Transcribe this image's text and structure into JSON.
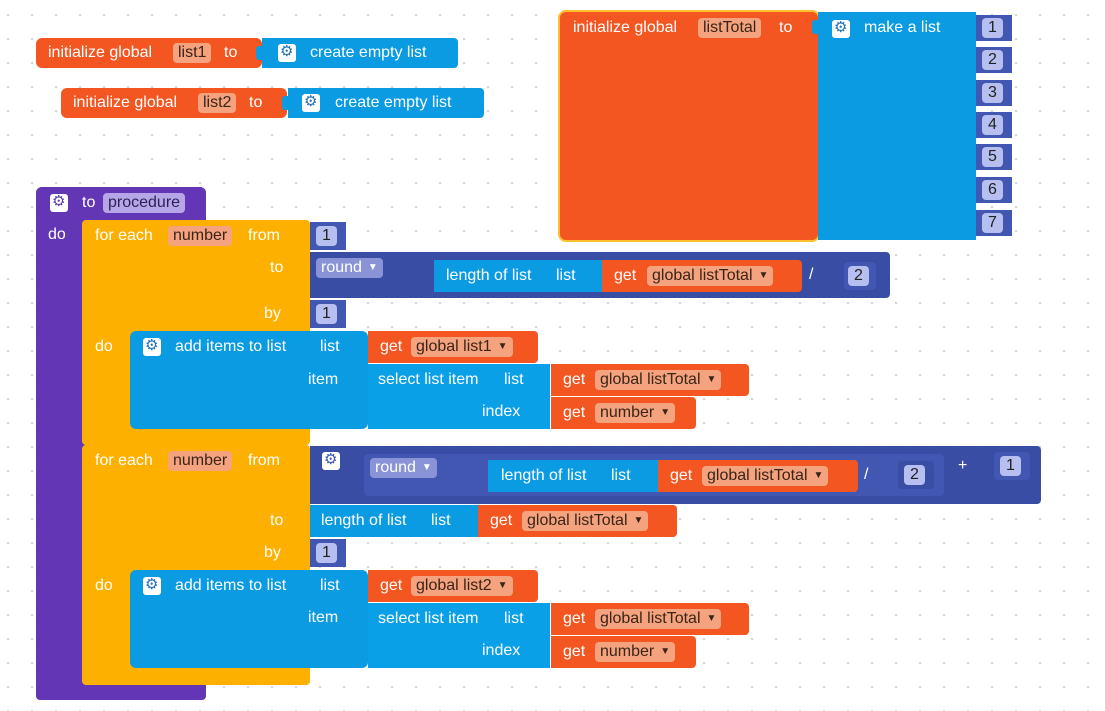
{
  "colors": {
    "global": "#f45622",
    "list": "#0b9be3",
    "math": "#3a4da4",
    "control": "#fdb000",
    "procedure": "#6236b4"
  },
  "init1": {
    "prefix": "initialize global",
    "name": "list1",
    "to": "to",
    "value": "create empty list"
  },
  "init2": {
    "prefix": "initialize global",
    "name": "list2",
    "to": "to",
    "value": "create empty list"
  },
  "init3": {
    "prefix": "initialize global",
    "name": "listTotal",
    "to": "to",
    "value": "make a list",
    "items": [
      "1",
      "2",
      "3",
      "4",
      "5",
      "6",
      "7"
    ]
  },
  "proc": {
    "to": "to",
    "name": "procedure",
    "do": "do",
    "loop1": {
      "for_each": "for each",
      "var": "number",
      "from": "from",
      "from_value": "1",
      "to": "to",
      "round": "round",
      "length_of_list": "length of list",
      "list": "list",
      "get": "get",
      "get_value": "global listTotal",
      "divide": "/",
      "divisor": "2",
      "by": "by",
      "by_value": "1",
      "do": "do",
      "add_items": "add items to list",
      "list_label": "list",
      "target_list": "global list1",
      "item": "item",
      "select_list_item": "select list item",
      "select_list_label": "list",
      "select_list_value": "global listTotal",
      "index": "index",
      "index_value": "number"
    },
    "loop2": {
      "for_each": "for each",
      "var": "number",
      "from": "from",
      "round": "round",
      "length_of_list": "length of list",
      "list": "list",
      "get": "get",
      "get_value": "global listTotal",
      "divide": "/",
      "divisor": "2",
      "plus": "+",
      "addend": "1",
      "to": "to",
      "to_length": "length of list",
      "to_list": "list",
      "to_get_value": "global listTotal",
      "by": "by",
      "by_value": "1",
      "do": "do",
      "add_items": "add items to list",
      "list_label": "list",
      "target_list": "global list2",
      "item": "item",
      "select_list_item": "select list item",
      "select_list_label": "list",
      "select_list_value": "global listTotal",
      "index": "index",
      "index_value": "number"
    }
  },
  "icons": {
    "mutator": "gear-icon",
    "dropdown": "dropdown-arrow-icon"
  },
  "dropdown_arrow": "▼"
}
